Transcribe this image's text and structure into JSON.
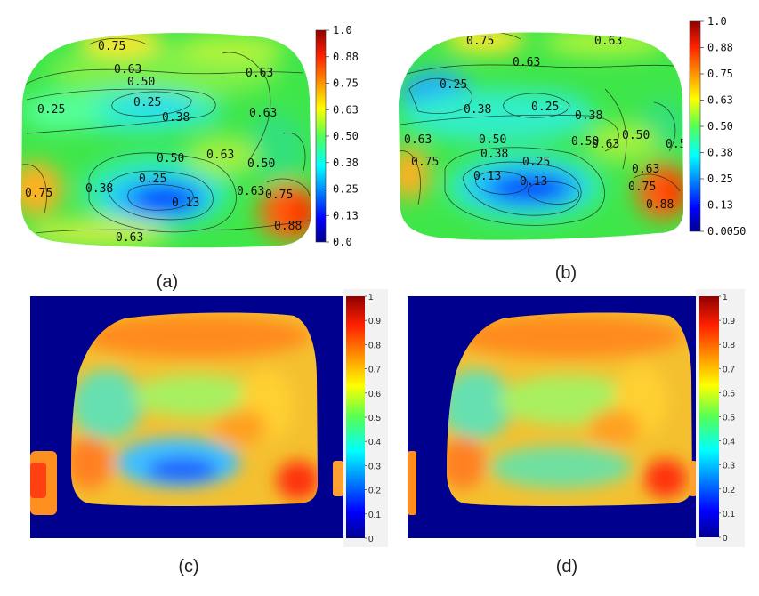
{
  "chart_data": [
    {
      "panel": "a",
      "type": "heatmap",
      "subtype": "contour",
      "caption": "(a)",
      "colormap": "jet",
      "colorbar": {
        "min": 0.0,
        "max": 1.0,
        "ticks": [
          "1.0",
          "0.88",
          "0.75",
          "0.63",
          "0.50",
          "0.38",
          "0.25",
          "0.13",
          "0.0"
        ]
      },
      "contour_labels": [
        "0.75",
        "0.63",
        "0.50",
        "0.63",
        "0.25",
        "0.25",
        "0.38",
        "0.63",
        "0.63",
        "0.50",
        "0.50",
        "0.38",
        "0.25",
        "0.13",
        "0.63",
        "0.75",
        "0.75",
        "0.88",
        "0.63"
      ]
    },
    {
      "panel": "b",
      "type": "heatmap",
      "subtype": "contour",
      "caption": "(b)",
      "colormap": "jet",
      "colorbar": {
        "min": 0.005,
        "max": 1.0,
        "ticks": [
          "1.0",
          "0.88",
          "0.75",
          "0.63",
          "0.50",
          "0.38",
          "0.25",
          "0.13",
          "0.0050"
        ]
      },
      "contour_labels": [
        "0.75",
        "0.63",
        "0.63",
        "0.25",
        "0.38",
        "0.25",
        "0.38",
        "0.63",
        "0.50",
        "0.38",
        "0.50",
        "0.63",
        "0.50",
        "0.5",
        "0.75",
        "0.13",
        "0.13",
        "0.25",
        "0.63",
        "0.75",
        "0.88"
      ]
    },
    {
      "panel": "c",
      "type": "heatmap",
      "subtype": "pixel",
      "caption": "(c)",
      "colormap": "jet",
      "background": "#00008f",
      "colorbar": {
        "min": 0,
        "max": 1,
        "ticks": [
          "1",
          "0.9",
          "0.8",
          "0.7",
          "0.6",
          "0.5",
          "0.4",
          "0.3",
          "0.2",
          "0.1",
          "0"
        ]
      }
    },
    {
      "panel": "d",
      "type": "heatmap",
      "subtype": "pixel",
      "caption": "(d)",
      "colormap": "jet",
      "background": "#00008f",
      "colorbar": {
        "min": 0,
        "max": 1,
        "ticks": [
          "1",
          "0.9",
          "0.8",
          "0.7",
          "0.6",
          "0.5",
          "0.4",
          "0.3",
          "0.2",
          "0.1",
          "0"
        ]
      }
    }
  ]
}
